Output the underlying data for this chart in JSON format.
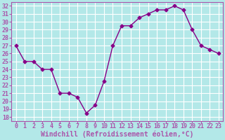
{
  "x": [
    0,
    1,
    2,
    3,
    4,
    5,
    6,
    7,
    8,
    9,
    10,
    11,
    12,
    13,
    14,
    15,
    16,
    17,
    18,
    19,
    20,
    21,
    22,
    23
  ],
  "y": [
    27,
    25,
    25,
    24,
    24,
    21,
    21,
    20.5,
    18.5,
    19.5,
    22.5,
    27,
    29.5,
    29.5,
    30.5,
    31,
    31.5,
    31.5,
    32,
    31.5,
    29,
    27,
    26.5,
    26
  ],
  "line_color": "#880088",
  "marker": "D",
  "markersize": 2.5,
  "linewidth": 1,
  "xlabel": "Windchill (Refroidissement éolien,°C)",
  "xlabel_fontsize": 7,
  "xlabel_fontweight": "bold",
  "xtick_labels": [
    "0",
    "1",
    "2",
    "3",
    "4",
    "5",
    "6",
    "7",
    "8",
    "9",
    "10",
    "11",
    "12",
    "13",
    "14",
    "15",
    "16",
    "17",
    "18",
    "19",
    "20",
    "21",
    "22",
    "23"
  ],
  "ytick_labels": [
    "18",
    "19",
    "20",
    "21",
    "22",
    "23",
    "24",
    "25",
    "26",
    "27",
    "28",
    "29",
    "30",
    "31",
    "32"
  ],
  "yticks": [
    18,
    19,
    20,
    21,
    22,
    23,
    24,
    25,
    26,
    27,
    28,
    29,
    30,
    31,
    32
  ],
  "ylim": [
    17.5,
    32.5
  ],
  "xlim": [
    -0.5,
    23.5
  ],
  "background_color": "#b3e8e8",
  "grid_color": "#ffffff",
  "tick_fontsize": 6,
  "spine_color": "#aa55aa"
}
